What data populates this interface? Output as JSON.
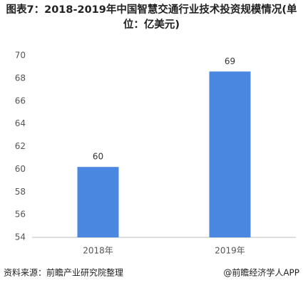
{
  "chart_data": {
    "type": "bar",
    "title": "图表7：2018-2019年中国智慧交通行业技术投资规模情况(单位：亿美元)",
    "categories": [
      "2018年",
      "2019年"
    ],
    "values": [
      60.2,
      68.6
    ],
    "value_labels": [
      "60",
      "69"
    ],
    "color": "#4a87e0",
    "ylim": [
      54,
      70
    ],
    "yticks": [
      54,
      56,
      58,
      60,
      62,
      64,
      66,
      68,
      70
    ],
    "grid": false,
    "source": "资料来源：前瞻产业研究院整理",
    "credit": "@前瞻经济学人APP"
  }
}
